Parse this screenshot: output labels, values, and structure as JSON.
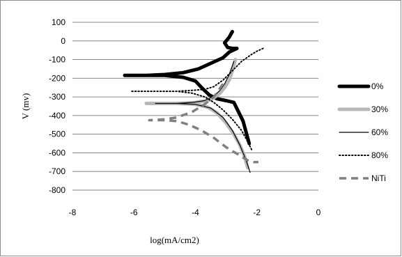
{
  "chart_data": {
    "type": "line",
    "title": "",
    "xlabel": "log(mA/cm2)",
    "ylabel": "V (mv)",
    "xlim": [
      -8,
      0
    ],
    "ylim": [
      -800,
      100
    ],
    "x_ticks": [
      -8,
      -6,
      -4,
      -2,
      0
    ],
    "y_ticks": [
      100,
      0,
      -100,
      -200,
      -300,
      -400,
      -500,
      -600,
      -700,
      -800
    ],
    "grid": "horizontal",
    "legend_position": "right",
    "series": [
      {
        "name": "0%",
        "color": "#000000",
        "style": "thick-solid",
        "x": [
          -2.8,
          -2.9,
          -3.05,
          -2.95,
          -2.8,
          -2.65,
          -2.9,
          -3.1,
          -3.5,
          -3.9,
          -4.4,
          -5.0,
          -5.6,
          -6.3,
          -5.6,
          -5.0,
          -4.4,
          -4.0,
          -3.8,
          -3.55,
          -3.3,
          -3.0,
          -2.75,
          -2.6,
          -2.45,
          -2.35,
          -2.25
        ],
        "y": [
          50,
          20,
          -10,
          -35,
          -40,
          -40,
          -60,
          -90,
          -120,
          -150,
          -170,
          -180,
          -185,
          -185,
          -185,
          -185,
          -195,
          -215,
          -250,
          -290,
          -310,
          -320,
          -330,
          -380,
          -430,
          -490,
          -550
        ]
      },
      {
        "name": "30%",
        "color": "#b8b8b8",
        "style": "thick-solid",
        "x": [
          -2.7,
          -2.8,
          -2.9,
          -3.05,
          -3.2,
          -3.4,
          -3.6,
          -4.0,
          -4.6,
          -5.6,
          -4.6,
          -4.0,
          -3.6,
          -3.3,
          -3.0,
          -2.75,
          -2.55,
          -2.4,
          -2.3
        ],
        "y": [
          -100,
          -160,
          -210,
          -250,
          -280,
          -305,
          -320,
          -330,
          -335,
          -335,
          -335,
          -340,
          -355,
          -385,
          -440,
          -500,
          -560,
          -620,
          -680
        ]
      },
      {
        "name": "60%",
        "color": "#000000",
        "style": "thin-solid",
        "x": [
          -2.75,
          -2.9,
          -3.05,
          -3.2,
          -3.4,
          -3.7,
          -4.1,
          -4.6,
          -5.3,
          -4.6,
          -4.0,
          -3.5,
          -3.1,
          -2.8,
          -2.55,
          -2.35,
          -2.22
        ],
        "y": [
          -110,
          -180,
          -230,
          -265,
          -295,
          -320,
          -330,
          -335,
          -335,
          -335,
          -340,
          -360,
          -410,
          -480,
          -560,
          -640,
          -705
        ]
      },
      {
        "name": "80%",
        "color": "#000000",
        "style": "dotted",
        "x": [
          -1.8,
          -2.0,
          -2.2,
          -2.5,
          -2.8,
          -3.1,
          -3.4,
          -3.7,
          -4.1,
          -4.6,
          -5.2,
          -6.1,
          -5.2,
          -4.6,
          -4.1,
          -3.7,
          -3.4,
          -3.1,
          -2.8,
          -2.5,
          -2.3,
          -2.15
        ],
        "y": [
          -40,
          -55,
          -75,
          -110,
          -160,
          -210,
          -245,
          -260,
          -265,
          -270,
          -270,
          -270,
          -270,
          -270,
          -280,
          -300,
          -330,
          -370,
          -420,
          -480,
          -540,
          -590
        ]
      },
      {
        "name": "NiTi",
        "color": "#808080",
        "style": "dashed",
        "x": [
          -3.1,
          -3.4,
          -3.7,
          -4.1,
          -4.6,
          -5.0,
          -5.5,
          -5.0,
          -4.6,
          -4.2,
          -3.8,
          -3.4,
          -3.0,
          -2.6,
          -2.3,
          -2.1,
          -1.95
        ],
        "y": [
          -230,
          -300,
          -340,
          -380,
          -410,
          -420,
          -425,
          -425,
          -430,
          -450,
          -480,
          -520,
          -570,
          -610,
          -640,
          -650,
          -650
        ]
      }
    ]
  }
}
